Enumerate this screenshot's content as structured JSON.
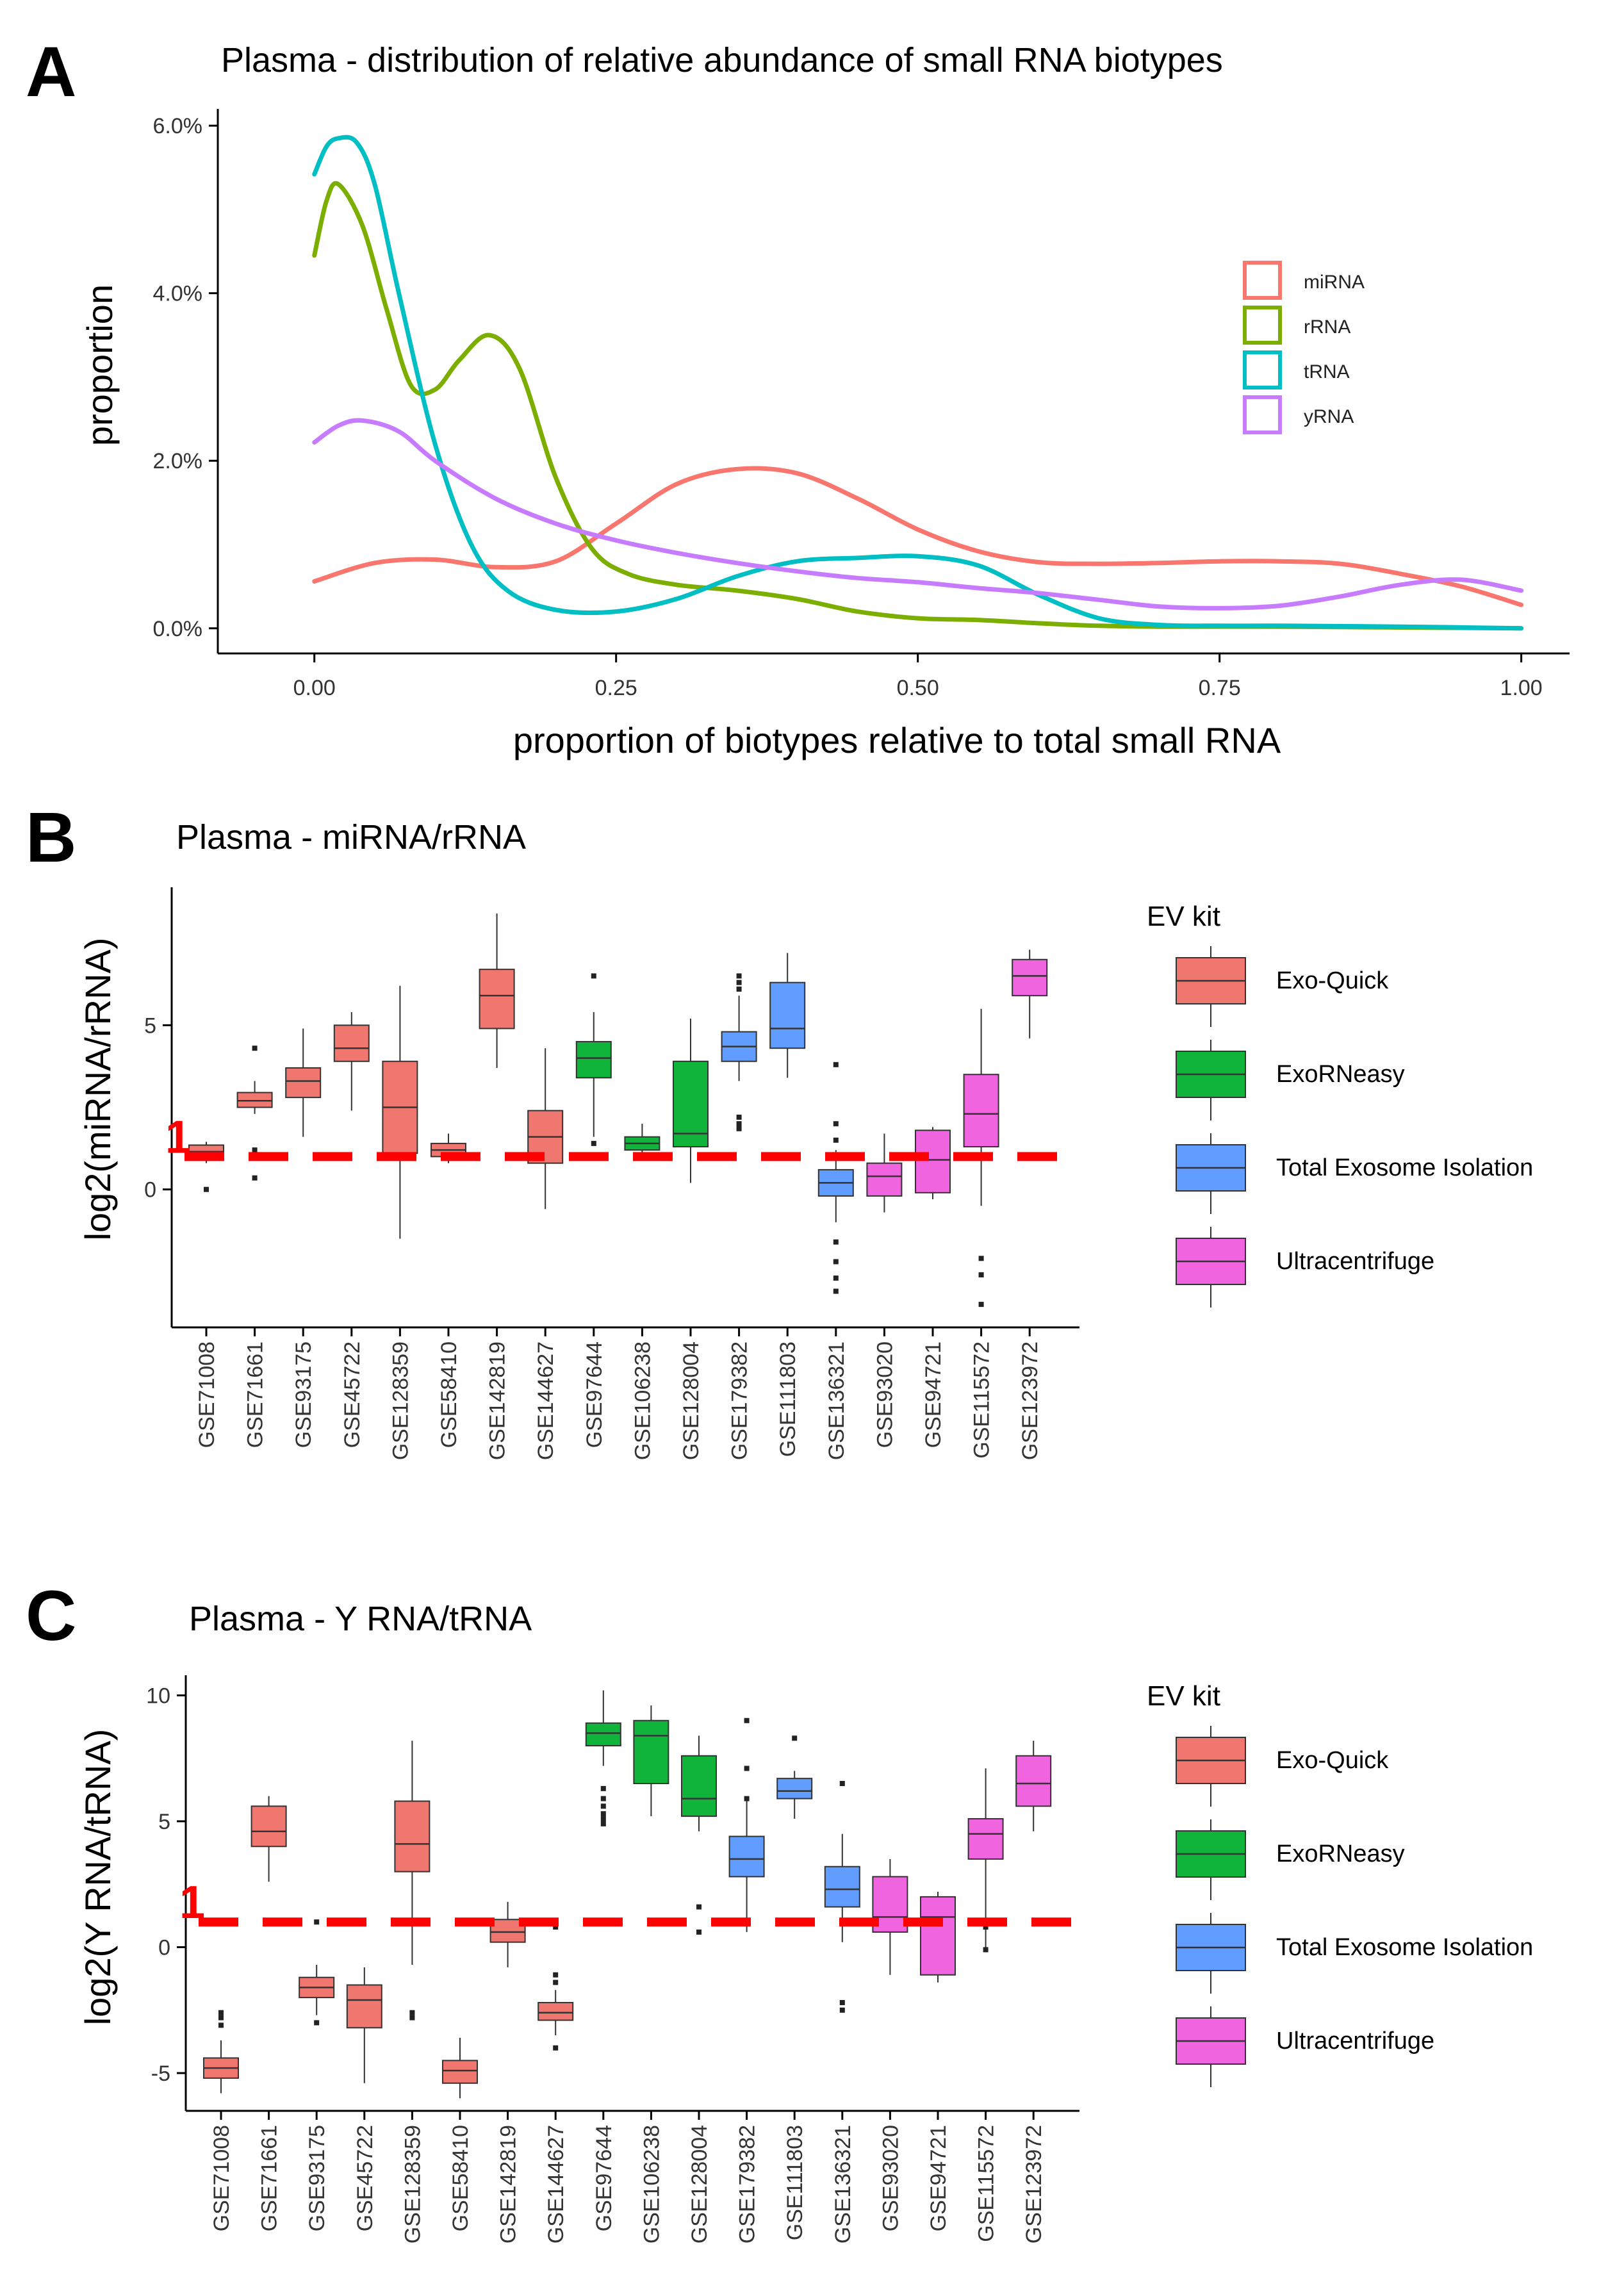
{
  "figure": {
    "panels": [
      "A",
      "B",
      "C"
    ]
  },
  "colors": {
    "Exo-Quick": "#F0776F",
    "ExoRNeasy": "#10B43A",
    "Total Exosome Isolation": "#619CFF",
    "Ultracentrifuge": "#F064E0",
    "miRNA": "#F8766D",
    "rRNA": "#7CAE00",
    "tRNA": "#00BFC4",
    "yRNA": "#C77CFF",
    "threshold": "#FF0000"
  },
  "chart_data": [
    {
      "panel": "A",
      "type": "line",
      "title": "Plasma - distribution of relative abundance of small RNA biotypes",
      "xlabel": "proportion of biotypes relative to total small RNA",
      "ylabel": "proportion",
      "xlim": [
        -0.08,
        1.04
      ],
      "ylim": [
        -0.3,
        6.2
      ],
      "x_ticks": [
        0,
        0.25,
        0.5,
        0.75,
        1.0
      ],
      "x_tick_labels": [
        "0.00",
        "0.25",
        "0.50",
        "0.75",
        "1.00"
      ],
      "y_ticks": [
        0,
        2,
        4,
        6
      ],
      "y_tick_labels": [
        "0.0%",
        "2.0%",
        "4.0%",
        "6.0%"
      ],
      "legend": [
        "miRNA",
        "rRNA",
        "tRNA",
        "yRNA"
      ],
      "legend_position": "top-right",
      "series": [
        {
          "name": "miRNA",
          "x": [
            0,
            0.05,
            0.1,
            0.15,
            0.2,
            0.25,
            0.3,
            0.35,
            0.4,
            0.45,
            0.5,
            0.55,
            0.6,
            0.65,
            0.7,
            0.75,
            0.8,
            0.85,
            0.9,
            0.95,
            1.0
          ],
          "y": [
            0.56,
            0.78,
            0.82,
            0.73,
            0.8,
            1.25,
            1.72,
            1.9,
            1.85,
            1.55,
            1.18,
            0.92,
            0.79,
            0.77,
            0.78,
            0.8,
            0.8,
            0.77,
            0.65,
            0.5,
            0.28
          ]
        },
        {
          "name": "rRNA",
          "x": [
            0,
            0.01,
            0.02,
            0.04,
            0.06,
            0.08,
            0.1,
            0.12,
            0.145,
            0.17,
            0.2,
            0.23,
            0.26,
            0.3,
            0.35,
            0.4,
            0.45,
            0.5,
            0.55,
            0.6,
            0.65,
            0.7,
            0.8,
            0.9,
            1.0
          ],
          "y": [
            4.45,
            5.1,
            5.3,
            4.8,
            3.8,
            2.9,
            2.85,
            3.2,
            3.5,
            3.1,
            1.8,
            0.95,
            0.65,
            0.52,
            0.45,
            0.35,
            0.2,
            0.12,
            0.1,
            0.06,
            0.03,
            0.02,
            0.02,
            0.01,
            0.0
          ]
        },
        {
          "name": "tRNA",
          "x": [
            0,
            0.01,
            0.02,
            0.035,
            0.05,
            0.07,
            0.1,
            0.13,
            0.16,
            0.2,
            0.25,
            0.3,
            0.35,
            0.4,
            0.45,
            0.5,
            0.55,
            0.6,
            0.65,
            0.7,
            0.75,
            0.8,
            0.9,
            1.0
          ],
          "y": [
            5.42,
            5.75,
            5.85,
            5.8,
            5.3,
            4.0,
            2.2,
            1.0,
            0.45,
            0.22,
            0.2,
            0.35,
            0.62,
            0.8,
            0.84,
            0.86,
            0.75,
            0.4,
            0.12,
            0.04,
            0.03,
            0.03,
            0.02,
            0.0
          ]
        },
        {
          "name": "yRNA",
          "x": [
            0,
            0.02,
            0.04,
            0.07,
            0.1,
            0.15,
            0.2,
            0.25,
            0.3,
            0.35,
            0.4,
            0.45,
            0.5,
            0.55,
            0.6,
            0.65,
            0.7,
            0.75,
            0.8,
            0.85,
            0.9,
            0.95,
            1.0
          ],
          "y": [
            2.22,
            2.42,
            2.48,
            2.35,
            2.0,
            1.55,
            1.25,
            1.05,
            0.9,
            0.78,
            0.68,
            0.6,
            0.55,
            0.48,
            0.42,
            0.34,
            0.26,
            0.24,
            0.27,
            0.38,
            0.52,
            0.58,
            0.45
          ]
        }
      ]
    },
    {
      "panel": "B",
      "type": "box",
      "title": "Plasma - miRNA/rRNA",
      "xlabel": "",
      "ylabel": "log2(miRNA/rRNA)",
      "ylim": [
        -4.2,
        9.2
      ],
      "y_ticks": [
        0,
        5
      ],
      "y_tick_labels": [
        "0",
        "5"
      ],
      "threshold": {
        "value": 1,
        "label": "1"
      },
      "legend_title": "EV kit",
      "legend": [
        "Exo-Quick",
        "ExoRNeasy",
        "Total Exosome Isolation",
        "Ultracentrifuge"
      ],
      "legend_position": "right",
      "categories": [
        "GSE71008",
        "GSE71661",
        "GSE93175",
        "GSE45722",
        "GSE128359",
        "GSE58410",
        "GSE142819",
        "GSE144627",
        "GSE97644",
        "GSE106238",
        "GSE128004",
        "GSE179382",
        "GSE111803",
        "GSE136321",
        "GSE93020",
        "GSE94721",
        "GSE115572",
        "GSE123972"
      ],
      "kits": [
        "Exo-Quick",
        "Exo-Quick",
        "Exo-Quick",
        "Exo-Quick",
        "Exo-Quick",
        "Exo-Quick",
        "Exo-Quick",
        "Exo-Quick",
        "ExoRNeasy",
        "ExoRNeasy",
        "ExoRNeasy",
        "Total Exosome Isolation",
        "Total Exosome Isolation",
        "Total Exosome Isolation",
        "Ultracentrifuge",
        "Ultracentrifuge",
        "Ultracentrifuge",
        "Ultracentrifuge"
      ],
      "boxes": [
        {
          "low": 0.8,
          "q1": 0.95,
          "median": 1.15,
          "q3": 1.35,
          "high": 1.45,
          "outliers": [
            0.0
          ]
        },
        {
          "low": 2.3,
          "q1": 2.5,
          "median": 2.7,
          "q3": 2.95,
          "high": 3.3,
          "outliers": [
            4.3,
            1.2,
            0.35
          ]
        },
        {
          "low": 1.6,
          "q1": 2.8,
          "median": 3.3,
          "q3": 3.7,
          "high": 4.9,
          "outliers": []
        },
        {
          "low": 2.4,
          "q1": 3.9,
          "median": 4.3,
          "q3": 5.0,
          "high": 5.4,
          "outliers": []
        },
        {
          "low": -1.5,
          "q1": 1.1,
          "median": 2.5,
          "q3": 3.9,
          "high": 6.2,
          "outliers": []
        },
        {
          "low": 0.8,
          "q1": 1.0,
          "median": 1.2,
          "q3": 1.4,
          "high": 1.7,
          "outliers": []
        },
        {
          "low": 3.7,
          "q1": 4.9,
          "median": 5.9,
          "q3": 6.7,
          "high": 8.4,
          "outliers": []
        },
        {
          "low": -0.6,
          "q1": 0.8,
          "median": 1.6,
          "q3": 2.4,
          "high": 4.3,
          "outliers": []
        },
        {
          "low": 1.6,
          "q1": 3.4,
          "median": 4.0,
          "q3": 4.5,
          "high": 5.4,
          "outliers": [
            6.5,
            1.4
          ]
        },
        {
          "low": 1.0,
          "q1": 1.2,
          "median": 1.4,
          "q3": 1.6,
          "high": 2.0,
          "outliers": []
        },
        {
          "low": 0.2,
          "q1": 1.3,
          "median": 1.7,
          "q3": 3.9,
          "high": 5.2,
          "outliers": []
        },
        {
          "low": 3.3,
          "q1": 3.9,
          "median": 4.35,
          "q3": 4.8,
          "high": 5.9,
          "outliers": [
            6.5,
            6.3,
            6.1,
            2.2,
            2.0,
            1.85
          ]
        },
        {
          "low": 3.4,
          "q1": 4.3,
          "median": 4.9,
          "q3": 6.3,
          "high": 7.2,
          "outliers": []
        },
        {
          "low": -1.0,
          "q1": -0.2,
          "median": 0.2,
          "q3": 0.6,
          "high": 1.2,
          "outliers": [
            3.8,
            2.0,
            1.5,
            -1.6,
            -2.2,
            -2.7,
            -3.1
          ]
        },
        {
          "low": -0.7,
          "q1": -0.2,
          "median": 0.4,
          "q3": 0.8,
          "high": 1.7,
          "outliers": []
        },
        {
          "low": -0.3,
          "q1": -0.1,
          "median": 0.9,
          "q3": 1.8,
          "high": 1.9,
          "outliers": []
        },
        {
          "low": -0.5,
          "q1": 1.3,
          "median": 2.3,
          "q3": 3.5,
          "high": 5.5,
          "outliers": [
            -2.1,
            -2.6,
            -3.5
          ]
        },
        {
          "low": 4.6,
          "q1": 5.9,
          "median": 6.5,
          "q3": 7.0,
          "high": 7.3,
          "outliers": []
        }
      ]
    },
    {
      "panel": "C",
      "type": "box",
      "title": "Plasma - Y RNA/tRNA",
      "xlabel": "",
      "ylabel": "log2(Y RNA/tRNA)",
      "ylim": [
        -6.5,
        10.8
      ],
      "y_ticks": [
        -5,
        0,
        5,
        10
      ],
      "y_tick_labels": [
        "-5",
        "0",
        "5",
        "10"
      ],
      "threshold": {
        "value": 1,
        "label": "1"
      },
      "legend_title": "EV kit",
      "legend": [
        "Exo-Quick",
        "ExoRNeasy",
        "Total Exosome Isolation",
        "Ultracentrifuge"
      ],
      "legend_position": "right",
      "categories": [
        "GSE71008",
        "GSE71661",
        "GSE93175",
        "GSE45722",
        "GSE128359",
        "GSE58410",
        "GSE142819",
        "GSE144627",
        "GSE97644",
        "GSE106238",
        "GSE128004",
        "GSE179382",
        "GSE111803",
        "GSE136321",
        "GSE93020",
        "GSE94721",
        "GSE115572",
        "GSE123972"
      ],
      "kits": [
        "Exo-Quick",
        "Exo-Quick",
        "Exo-Quick",
        "Exo-Quick",
        "Exo-Quick",
        "Exo-Quick",
        "Exo-Quick",
        "Exo-Quick",
        "ExoRNeasy",
        "ExoRNeasy",
        "ExoRNeasy",
        "Total Exosome Isolation",
        "Total Exosome Isolation",
        "Total Exosome Isolation",
        "Ultracentrifuge",
        "Ultracentrifuge",
        "Ultracentrifuge",
        "Ultracentrifuge"
      ],
      "boxes": [
        {
          "low": -5.8,
          "q1": -5.2,
          "median": -4.8,
          "q3": -4.4,
          "high": -3.7,
          "outliers": [
            -2.6,
            -2.8,
            -3.1
          ]
        },
        {
          "low": 2.6,
          "q1": 4.0,
          "median": 4.6,
          "q3": 5.6,
          "high": 6.0,
          "outliers": []
        },
        {
          "low": -2.7,
          "q1": -2.0,
          "median": -1.6,
          "q3": -1.2,
          "high": -0.7,
          "outliers": [
            -3.0,
            1.0
          ]
        },
        {
          "low": -5.4,
          "q1": -3.2,
          "median": -2.1,
          "q3": -1.5,
          "high": -0.8,
          "outliers": []
        },
        {
          "low": -0.7,
          "q1": 3.0,
          "median": 4.1,
          "q3": 5.8,
          "high": 8.2,
          "outliers": [
            -2.6,
            -2.8
          ]
        },
        {
          "low": -6.0,
          "q1": -5.4,
          "median": -4.9,
          "q3": -4.5,
          "high": -3.6,
          "outliers": []
        },
        {
          "low": -0.8,
          "q1": 0.2,
          "median": 0.6,
          "q3": 1.1,
          "high": 1.8,
          "outliers": []
        },
        {
          "low": -3.5,
          "q1": -2.9,
          "median": -2.6,
          "q3": -2.2,
          "high": -1.7,
          "outliers": [
            0.8,
            -1.1,
            -1.4,
            -4.0
          ]
        },
        {
          "low": 7.2,
          "q1": 8.0,
          "median": 8.5,
          "q3": 8.9,
          "high": 10.2,
          "outliers": [
            6.3,
            5.9,
            5.6,
            5.3,
            5.1,
            4.9
          ]
        },
        {
          "low": 5.2,
          "q1": 6.5,
          "median": 8.4,
          "q3": 9.0,
          "high": 9.6,
          "outliers": []
        },
        {
          "low": 4.6,
          "q1": 5.2,
          "median": 5.9,
          "q3": 7.6,
          "high": 8.4,
          "outliers": [
            1.6,
            0.6
          ]
        },
        {
          "low": 0.6,
          "q1": 2.8,
          "median": 3.5,
          "q3": 4.4,
          "high": 5.8,
          "outliers": [
            9.0,
            7.1,
            5.9
          ]
        },
        {
          "low": 5.1,
          "q1": 5.9,
          "median": 6.2,
          "q3": 6.7,
          "high": 7.0,
          "outliers": [
            8.3
          ]
        },
        {
          "low": 0.2,
          "q1": 1.6,
          "median": 2.3,
          "q3": 3.2,
          "high": 4.5,
          "outliers": [
            6.5,
            -2.2,
            -2.5
          ]
        },
        {
          "low": -1.1,
          "q1": 0.6,
          "median": 1.2,
          "q3": 2.8,
          "high": 3.5,
          "outliers": []
        },
        {
          "low": -1.4,
          "q1": -1.1,
          "median": 1.2,
          "q3": 2.0,
          "high": 2.2,
          "outliers": []
        },
        {
          "low": -0.2,
          "q1": 3.5,
          "median": 4.5,
          "q3": 5.1,
          "high": 7.1,
          "outliers": [
            0.8,
            -0.1
          ]
        },
        {
          "low": 4.6,
          "q1": 5.6,
          "median": 6.5,
          "q3": 7.6,
          "high": 8.2,
          "outliers": []
        }
      ]
    }
  ]
}
